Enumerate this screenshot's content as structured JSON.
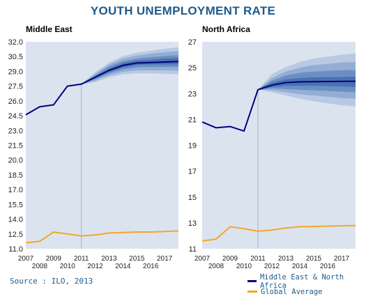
{
  "title": "YOUTH UNEMPLOYMENT RATE",
  "source": "Source : ILO, 2013",
  "legend": {
    "items": [
      {
        "label": "Middle East & North Africa",
        "color": "#000080"
      },
      {
        "label": "Global Average",
        "color": "#f5a623"
      }
    ]
  },
  "colors": {
    "plot_bg": "#dbe3ef",
    "main_line": "#000080",
    "global_line": "#f5a623",
    "fan_bands": [
      "#b9c9e3",
      "#93add5",
      "#6b8fc4",
      "#4a72b0"
    ]
  },
  "chart_data": [
    {
      "type": "line",
      "title": "Middle East",
      "x_ticks": [
        2007,
        2008,
        2009,
        2010,
        2011,
        2012,
        2013,
        2014,
        2015,
        2016,
        2017
      ],
      "ylim": [
        11.0,
        32.0
      ],
      "y_ticks": [
        11.0,
        12.5,
        14.0,
        15.5,
        17.0,
        18.5,
        20.0,
        21.5,
        23.0,
        24.5,
        26.0,
        27.5,
        29.0,
        30.5,
        32.0
      ],
      "forecast_start": 2011,
      "series": [
        {
          "key": "mena",
          "x": [
            2007,
            2008,
            2009,
            2010,
            2011,
            2012,
            2013,
            2014,
            2015,
            2016,
            2017,
            2018
          ],
          "values": [
            24.6,
            25.4,
            25.6,
            27.5,
            27.7,
            28.4,
            29.1,
            29.6,
            29.85,
            29.9,
            29.95,
            30.0
          ]
        },
        {
          "key": "global",
          "x": [
            2007,
            2008,
            2009,
            2010,
            2011,
            2012,
            2013,
            2014,
            2015,
            2016,
            2017,
            2018
          ],
          "values": [
            11.6,
            11.75,
            12.7,
            12.5,
            12.3,
            12.4,
            12.6,
            12.65,
            12.7,
            12.7,
            12.75,
            12.8
          ]
        }
      ],
      "fan": {
        "x": [
          2011,
          2012,
          2013,
          2014,
          2015,
          2016,
          2017,
          2018
        ],
        "bands": [
          {
            "upper": [
              27.7,
              28.9,
              29.9,
              30.55,
              30.9,
              31.1,
              31.3,
              31.45
            ],
            "lower": [
              27.7,
              27.9,
              28.4,
              28.7,
              28.8,
              28.8,
              28.75,
              28.7
            ]
          },
          {
            "upper": [
              27.7,
              28.75,
              29.7,
              30.3,
              30.6,
              30.8,
              30.95,
              31.05
            ],
            "lower": [
              27.7,
              28.05,
              28.6,
              28.95,
              29.1,
              29.1,
              29.1,
              29.05
            ]
          },
          {
            "upper": [
              27.7,
              28.6,
              29.5,
              30.05,
              30.3,
              30.45,
              30.55,
              30.65
            ],
            "lower": [
              27.7,
              28.2,
              28.8,
              29.2,
              29.4,
              29.45,
              29.45,
              29.45
            ]
          },
          {
            "upper": [
              27.7,
              28.5,
              29.3,
              29.85,
              30.1,
              30.2,
              30.3,
              30.35
            ],
            "lower": [
              27.7,
              28.3,
              28.95,
              29.4,
              29.65,
              29.7,
              29.7,
              29.7
            ]
          }
        ]
      }
    },
    {
      "type": "line",
      "title": "North Africa",
      "x_ticks": [
        2007,
        2008,
        2009,
        2010,
        2011,
        2012,
        2013,
        2014,
        2015,
        2016,
        2017
      ],
      "ylim": [
        11,
        27
      ],
      "y_ticks": [
        11,
        13,
        15,
        17,
        19,
        21,
        23,
        25,
        27
      ],
      "forecast_start": 2011,
      "series": [
        {
          "key": "mena",
          "x": [
            2007,
            2008,
            2009,
            2010,
            2011,
            2012,
            2013,
            2014,
            2015,
            2016,
            2017,
            2018
          ],
          "values": [
            20.8,
            20.35,
            20.45,
            20.1,
            23.3,
            23.65,
            23.85,
            23.9,
            23.92,
            23.93,
            23.94,
            23.95
          ]
        },
        {
          "key": "global",
          "x": [
            2007,
            2008,
            2009,
            2010,
            2011,
            2012,
            2013,
            2014,
            2015,
            2016,
            2017,
            2018
          ],
          "values": [
            11.6,
            11.75,
            12.7,
            12.55,
            12.35,
            12.45,
            12.6,
            12.7,
            12.72,
            12.75,
            12.77,
            12.8
          ]
        }
      ],
      "fan": {
        "x": [
          2011,
          2012,
          2013,
          2014,
          2015,
          2016,
          2017,
          2018
        ],
        "bands": [
          {
            "upper": [
              23.3,
              24.5,
              25.05,
              25.45,
              25.7,
              25.85,
              26.0,
              26.1
            ],
            "lower": [
              23.3,
              23.1,
              22.85,
              22.6,
              22.4,
              22.25,
              22.1,
              22.0
            ]
          },
          {
            "upper": [
              23.3,
              24.2,
              24.7,
              25.0,
              25.2,
              25.3,
              25.4,
              25.45
            ],
            "lower": [
              23.3,
              23.25,
              23.1,
              22.95,
              22.85,
              22.75,
              22.65,
              22.6
            ]
          },
          {
            "upper": [
              23.3,
              24.0,
              24.4,
              24.6,
              24.7,
              24.75,
              24.8,
              24.8
            ],
            "lower": [
              23.3,
              23.4,
              23.35,
              23.3,
              23.25,
              23.2,
              23.15,
              23.1
            ]
          },
          {
            "upper": [
              23.3,
              23.85,
              24.1,
              24.2,
              24.25,
              24.27,
              24.28,
              24.3
            ],
            "lower": [
              23.3,
              23.5,
              23.6,
              23.6,
              23.6,
              23.58,
              23.55,
              23.5
            ]
          }
        ]
      }
    }
  ]
}
